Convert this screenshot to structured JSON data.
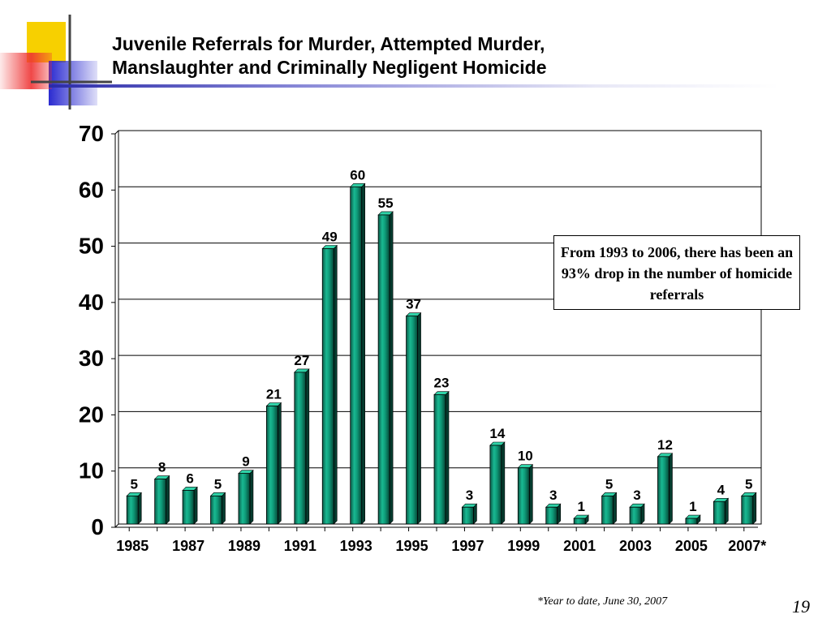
{
  "title_line1": "Juvenile Referrals for Murder, Attempted Murder,",
  "title_line2": "Manslaughter and Criminally Negligent Homicide",
  "callout_text": "From 1993 to 2006, there has been an 93% drop in the number of homicide referrals",
  "footnote": "*Year to date, June 30, 2007",
  "page_number": "19",
  "logo_colors": {
    "yellow": "#f7d000",
    "red": "#ee3333",
    "blue": "#2a2ad0",
    "line": "#444444"
  },
  "chart_data": {
    "type": "bar",
    "categories": [
      "1985",
      "1986",
      "1987",
      "1988",
      "1989",
      "1990",
      "1991",
      "1992",
      "1993",
      "1994",
      "1995",
      "1996",
      "1997",
      "1998",
      "1999",
      "2000",
      "2001",
      "2002",
      "2003",
      "2004",
      "2005",
      "2006",
      "2007*"
    ],
    "values": [
      5,
      8,
      6,
      5,
      9,
      21,
      27,
      49,
      60,
      55,
      37,
      23,
      3,
      14,
      10,
      3,
      1,
      5,
      3,
      12,
      1,
      4,
      5
    ],
    "x_tick_labels": [
      "1985",
      "1987",
      "1989",
      "1991",
      "1993",
      "1995",
      "1997",
      "1999",
      "2001",
      "2003",
      "2005",
      "2007*"
    ],
    "y_ticks": [
      0,
      10,
      20,
      30,
      40,
      50,
      60,
      70
    ],
    "ylim": [
      0,
      70
    ],
    "grid": true,
    "bar_color": "#0e9a78",
    "title": "",
    "xlabel": "",
    "ylabel": ""
  }
}
